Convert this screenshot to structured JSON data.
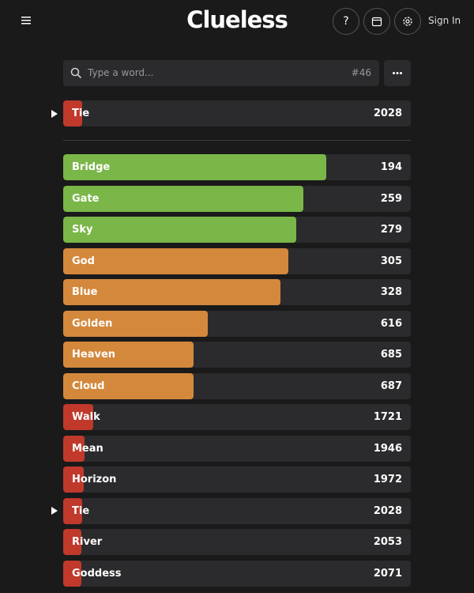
{
  "header": {
    "title": "Clueless",
    "help": "?",
    "sign_in": "Sign In"
  },
  "search": {
    "placeholder": "Type a word...",
    "game_number": "#46"
  },
  "current_guess": {
    "word": "Tie",
    "rank": 2028,
    "color": "#c0392b"
  },
  "guesses": [
    {
      "word": "Bridge",
      "rank": 194,
      "color": "#7ab648"
    },
    {
      "word": "Gate",
      "rank": 259,
      "color": "#7ab648"
    },
    {
      "word": "Sky",
      "rank": 279,
      "color": "#7ab648"
    },
    {
      "word": "God",
      "rank": 305,
      "color": "#d4883c"
    },
    {
      "word": "Blue",
      "rank": 328,
      "color": "#d4883c"
    },
    {
      "word": "Golden",
      "rank": 616,
      "color": "#d4883c"
    },
    {
      "word": "Heaven",
      "rank": 685,
      "color": "#d4883c"
    },
    {
      "word": "Cloud",
      "rank": 687,
      "color": "#d4883c"
    },
    {
      "word": "Walk",
      "rank": 1721,
      "color": "#c0392b"
    },
    {
      "word": "Mean",
      "rank": 1946,
      "color": "#c0392b"
    },
    {
      "word": "Horizon",
      "rank": 1972,
      "color": "#c0392b"
    },
    {
      "word": "Tie",
      "rank": 2028,
      "color": "#c0392b"
    },
    {
      "word": "River",
      "rank": 2053,
      "color": "#c0392b"
    },
    {
      "word": "Goddess",
      "rank": 2071,
      "color": "#c0392b"
    }
  ]
}
